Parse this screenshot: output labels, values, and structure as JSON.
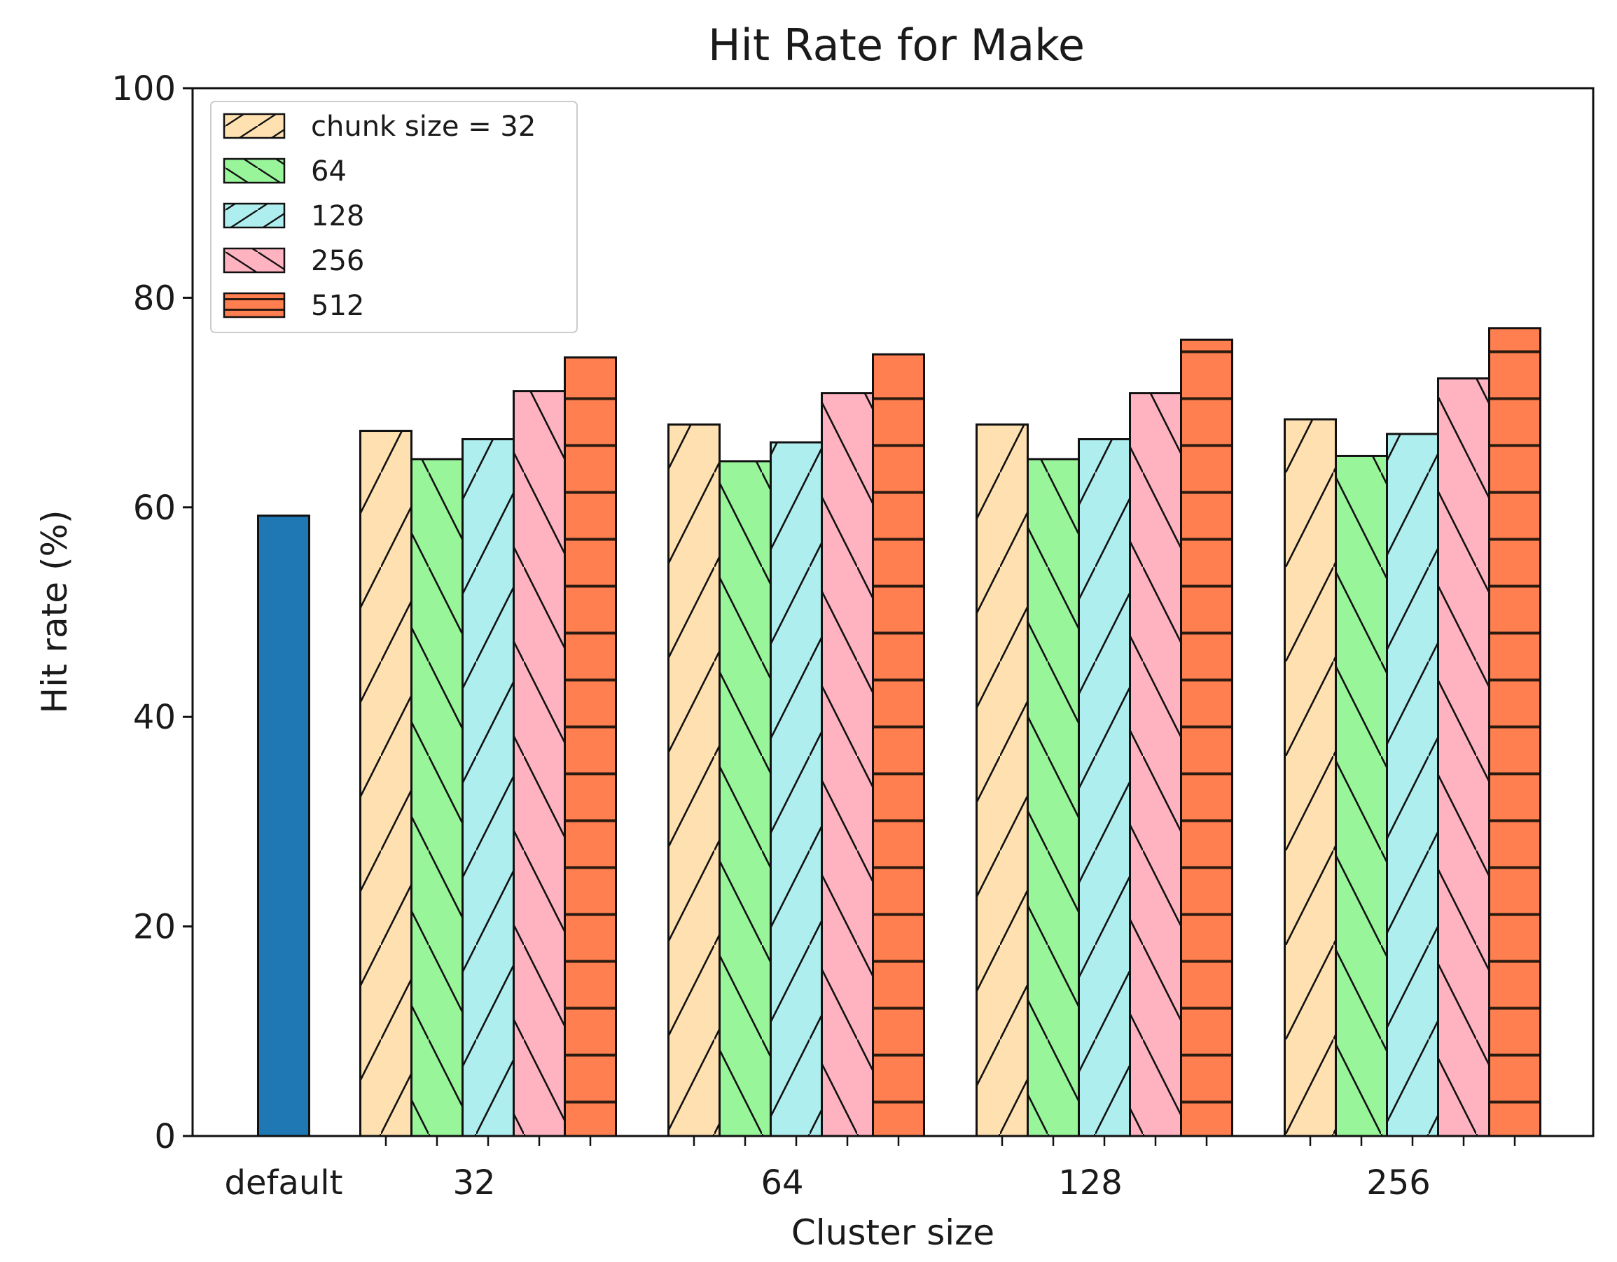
{
  "chart_data": {
    "type": "bar",
    "title": "Hit Rate for Make",
    "xlabel": "Cluster size",
    "ylabel": "Hit rate (%)",
    "ylim": [
      0,
      100
    ],
    "yticks": [
      0,
      20,
      40,
      60,
      80,
      100
    ],
    "baseline": {
      "category": "default",
      "value": 59.2,
      "color": "#1f77b4"
    },
    "categories": [
      "32",
      "64",
      "128",
      "256"
    ],
    "series": [
      {
        "name": "chunk size = 32",
        "color": "#ffe0b0",
        "hatch": "/",
        "values": [
          67.3,
          67.9,
          67.9,
          68.4
        ]
      },
      {
        "name": "64",
        "color": "#98f59a",
        "hatch": "\\",
        "values": [
          64.6,
          64.4,
          64.6,
          64.9
        ]
      },
      {
        "name": "128",
        "color": "#afeeee",
        "hatch": "/",
        "values": [
          66.5,
          66.2,
          66.5,
          67.0
        ]
      },
      {
        "name": "256",
        "color": "#ffb3c1",
        "hatch": "\\",
        "values": [
          71.1,
          70.9,
          70.9,
          72.3
        ]
      },
      {
        "name": "512",
        "color": "#ff7f50",
        "hatch": "-",
        "values": [
          74.3,
          74.6,
          76.0,
          77.1
        ]
      }
    ],
    "legend_position": "top-left",
    "grid": false
  }
}
